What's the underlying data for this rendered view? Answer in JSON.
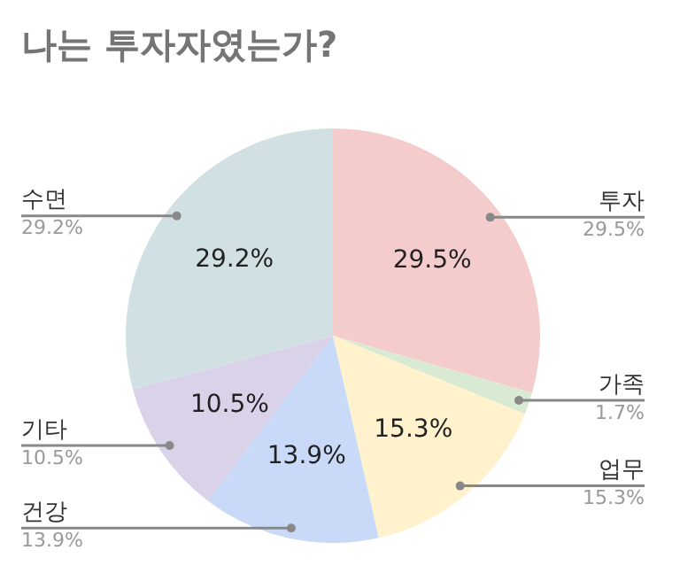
{
  "chart_data": {
    "type": "pie",
    "title": "나는 투자자였는가?",
    "categories": [
      "투자",
      "가족",
      "업무",
      "건강",
      "기타",
      "수면"
    ],
    "values": [
      29.5,
      1.7,
      15.3,
      13.9,
      10.5,
      29.2
    ],
    "colors": [
      "#f4cccc",
      "#d9ead3",
      "#fff2cc",
      "#c9daf8",
      "#d9d2e9",
      "#d0e0e3"
    ],
    "value_labels": [
      "29.5%",
      "1.7%",
      "15.3%",
      "13.9%",
      "10.5%",
      "29.2%"
    ],
    "legend": false
  }
}
